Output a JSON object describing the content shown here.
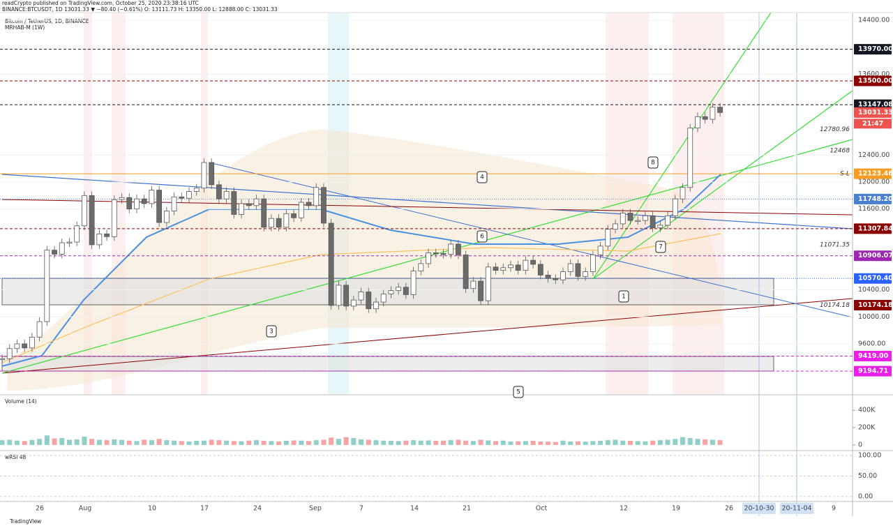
{
  "header": {
    "publisher": "readCrypto published on TradingView.com, October 25, 2020 23:38:16 UTC",
    "symbol_line": "BINANCE:BTCUSDT, 1D  13031.33 ▼ −80.40 (−0.61%)  O: 13111.73  H: 13350.00  L: 12888.00  C: 13031.33"
  },
  "chart_data": {
    "type": "candlestick",
    "title": "Bitcoin / TetherUS, 1D, BINANCE",
    "indicator": "MRHAB-M (1W)",
    "x_labels": [
      "26",
      "Aug",
      "10",
      "17",
      "24",
      "Sep",
      "7",
      "14",
      "21",
      "Oct",
      "12",
      "19",
      "26",
      "9"
    ],
    "date_boxes": [
      "20-10-30",
      "20-11-04"
    ],
    "closes": [
      9380,
      9530,
      9600,
      9540,
      9700,
      9930,
      10990,
      10930,
      11100,
      11110,
      11350,
      11800,
      11070,
      11230,
      11190,
      11740,
      11770,
      11600,
      11750,
      11680,
      11880,
      11400,
      11570,
      11780,
      11760,
      11860,
      11910,
      12290,
      11960,
      11750,
      11860,
      11520,
      11680,
      11650,
      11750,
      11330,
      11460,
      11330,
      11530,
      11470,
      11700,
      11650,
      11920,
      11390,
      10170,
      10470,
      10160,
      10250,
      10370,
      10120,
      10220,
      10340,
      10390,
      10440,
      10330,
      10680,
      10790,
      10950,
      10940,
      10930,
      11080,
      10920,
      10420,
      10530,
      10240,
      10740,
      10690,
      10730,
      10770,
      10690,
      10840,
      10780,
      10620,
      10570,
      10550,
      10670,
      10790,
      10600,
      10670,
      10920,
      11050,
      11300,
      11380,
      11540,
      11430,
      11430,
      11500,
      11320,
      11360,
      11500,
      11750,
      11920,
      12800,
      12970,
      12930,
      13110,
      13031.33
    ],
    "up_color": "#ffffff",
    "down_color": "#6b6b6b",
    "ylim": [
      8855,
      14514
    ],
    "yticks": [
      {
        "value": 14400,
        "label": "14400.00"
      },
      {
        "value": 13600,
        "label": "13600.00"
      },
      {
        "value": 12400,
        "label": "12400.00"
      },
      {
        "value": 12000,
        "label": "12000.00"
      },
      {
        "value": 11600,
        "label": "11600.00"
      },
      {
        "value": 10400,
        "label": "10400.00"
      },
      {
        "value": 10000,
        "label": "10000.00"
      },
      {
        "value": 9600,
        "label": "9600.00"
      }
    ],
    "price_labels": [
      {
        "value": 13970,
        "label": "13970.00",
        "color": "#131722",
        "line": "dashed"
      },
      {
        "value": 13500,
        "label": "13500.00",
        "color": "#8b0000",
        "line": "dashed"
      },
      {
        "value": 13147.08,
        "label": "13147.08",
        "color": "#131722",
        "line": "dashed"
      },
      {
        "value": 13031.33,
        "label": "13031.33",
        "color": "#ef5350",
        "line": "none"
      },
      {
        "value": 12123.46,
        "label": "12123.46",
        "color": "#f59d22",
        "line": "solid"
      },
      {
        "value": 11748.2,
        "label": "11748.20",
        "color": "#4a7fd0",
        "line": "dotted"
      },
      {
        "value": 11307.84,
        "label": "11307.84",
        "color": "#8b0000",
        "line": "dashed"
      },
      {
        "value": 10906.07,
        "label": "10906.07",
        "color": "#9c27b0",
        "line": "dashed"
      },
      {
        "value": 10570.4,
        "label": "10570.40",
        "color": "#2962ff",
        "line": "dotted"
      },
      {
        "value": 10174.18,
        "label": "10174.18",
        "color": "#8b0000",
        "line": "none"
      },
      {
        "value": 9419,
        "label": "9419.00",
        "color": "#e91ee9",
        "line": "dashed"
      },
      {
        "value": 9194.71,
        "label": "9194.71",
        "color": "#e91ee9",
        "line": "dashed"
      }
    ],
    "countdown": "21:47",
    "annotations": [
      {
        "value": 12780.96,
        "label": "12780.96"
      },
      {
        "value": 12468,
        "label": "12468"
      },
      {
        "value": 11071.35,
        "label": "11071.35"
      },
      {
        "value": 10174.18,
        "label": "10174.18"
      }
    ],
    "sl_label": "S-L",
    "callouts": [
      "1",
      "3",
      "4",
      "5",
      "6",
      "7",
      "8"
    ]
  },
  "volume": {
    "title": "Volume (14)",
    "values": [
      55000,
      60000,
      50000,
      45000,
      58000,
      70000,
      110000,
      75000,
      80000,
      60000,
      65000,
      95000,
      70000,
      60000,
      55000,
      65000,
      58000,
      50000,
      45000,
      60000,
      55000,
      70000,
      55000,
      50000,
      45000,
      40000,
      48000,
      50000,
      60000,
      55000,
      50000,
      45000,
      42000,
      50000,
      55000,
      48000,
      45000,
      40000,
      48000,
      52000,
      50000,
      45000,
      55000,
      60000,
      85000,
      70000,
      90000,
      80000,
      65000,
      60000,
      55000,
      50000,
      48000,
      45000,
      50000,
      55000,
      50000,
      52000,
      48000,
      50000,
      55000,
      60000,
      50000,
      45000,
      60000,
      52000,
      45000,
      50000,
      40000,
      42000,
      45000,
      48000,
      40000,
      38000,
      35000,
      50000,
      40000,
      42000,
      38000,
      45000,
      48000,
      55000,
      60000,
      50000,
      48000,
      45000,
      42000,
      50000,
      55000,
      60000,
      70000,
      90000,
      80000,
      70000,
      65000,
      60000,
      55000
    ],
    "ylim": [
      -57000,
      571000
    ],
    "yticks": [
      {
        "value": 400000,
        "label": "400K"
      },
      {
        "value": 200000,
        "label": "200K"
      },
      0
    ]
  },
  "wrsi": {
    "title": "wRSI 48",
    "ylim": [
      -10.3,
      110.3
    ],
    "yticks": [
      {
        "value": 100,
        "label": "100.00"
      },
      {
        "value": 50,
        "label": "50.00"
      },
      {
        "value": 0,
        "label": "0.00"
      }
    ]
  },
  "footer": "TradingView"
}
